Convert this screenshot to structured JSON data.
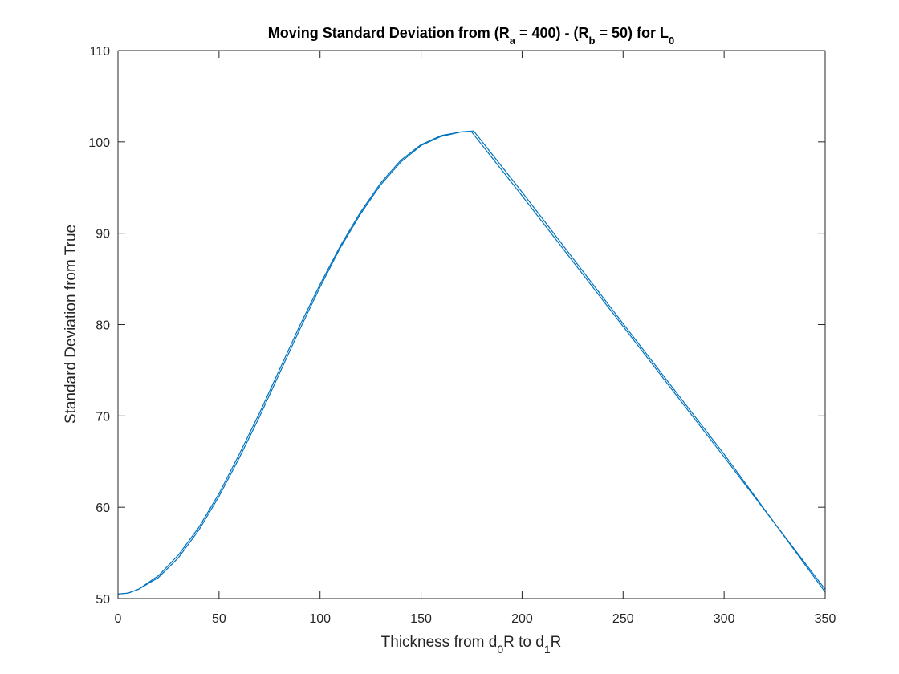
{
  "chart_data": {
    "type": "line",
    "title": {
      "parts": [
        {
          "text": "Moving Standard Deviation from (R"
        },
        {
          "text": "a",
          "sub": true
        },
        {
          "text": " = 400) - (R"
        },
        {
          "text": "b",
          "sub": true
        },
        {
          "text": " = 50) for L"
        },
        {
          "text": "0",
          "sub": true
        }
      ]
    },
    "xlabel": {
      "parts": [
        {
          "text": "Thickness from d"
        },
        {
          "text": "0",
          "sub": true
        },
        {
          "text": "R to d"
        },
        {
          "text": "1",
          "sub": true
        },
        {
          "text": "R"
        }
      ]
    },
    "ylabel": "Standard Deviation from True",
    "xlim": [
      0,
      350
    ],
    "ylim": [
      50,
      110
    ],
    "xticks": [
      0,
      50,
      100,
      150,
      200,
      250,
      300,
      350
    ],
    "yticks": [
      50,
      60,
      70,
      80,
      90,
      100,
      110
    ],
    "grid": false,
    "box": true,
    "series_color": "#0072BD",
    "series": [
      {
        "x": [
          0,
          5,
          10,
          20,
          30,
          40,
          50,
          60,
          70,
          80,
          90,
          100,
          110,
          120,
          130,
          140,
          150,
          160,
          170,
          175,
          200,
          250,
          300,
          350
        ],
        "y": [
          50.5,
          50.6,
          51.0,
          52.5,
          54.8,
          57.8,
          61.5,
          65.8,
          70.3,
          75.1,
          79.9,
          84.4,
          88.6,
          92.3,
          95.5,
          98.0,
          99.7,
          100.7,
          101.1,
          101.1,
          94.1,
          79.8,
          65.5,
          51.0
        ]
      },
      {
        "x": [
          0,
          5,
          10,
          20,
          30,
          40,
          50,
          60,
          70,
          80,
          90,
          100,
          110,
          120,
          130,
          140,
          150,
          160,
          170,
          176,
          200,
          250,
          300,
          350
        ],
        "y": [
          50.5,
          50.6,
          51.0,
          52.3,
          54.5,
          57.5,
          61.2,
          65.4,
          69.9,
          74.7,
          79.5,
          84.1,
          88.4,
          92.1,
          95.3,
          97.8,
          99.6,
          100.6,
          101.1,
          101.2,
          94.5,
          80.1,
          65.8,
          50.7
        ]
      }
    ]
  }
}
